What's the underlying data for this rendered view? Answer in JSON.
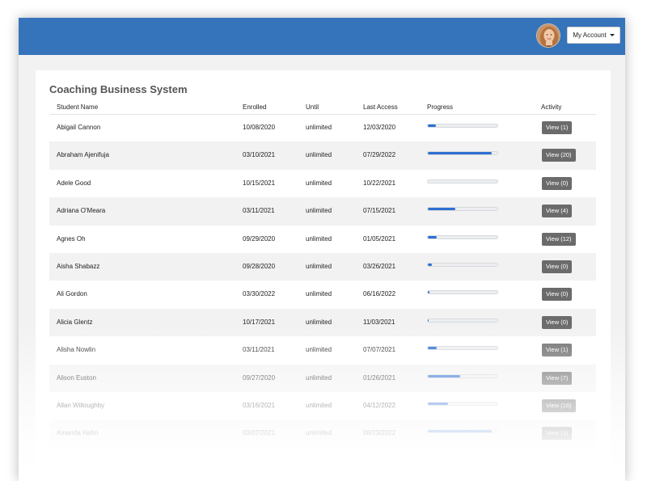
{
  "header": {
    "account_label": "My Account",
    "avatar_icon": "user-avatar"
  },
  "page": {
    "title": "Coaching Business System"
  },
  "table": {
    "columns": [
      "Student Name",
      "Enrolled",
      "Until",
      "Last Access",
      "Progress",
      "Activity"
    ],
    "rows": [
      {
        "name": "Abigail Cannon",
        "enrolled": "10/08/2020",
        "until": "unlimited",
        "last": "12/03/2020",
        "progress": 0.12,
        "activity": "View (1)"
      },
      {
        "name": "Abraham Ajenifuja",
        "enrolled": "03/10/2021",
        "until": "unlimited",
        "last": "07/29/2022",
        "progress": 0.92,
        "activity": "View (20)"
      },
      {
        "name": "Adele Good",
        "enrolled": "10/15/2021",
        "until": "unlimited",
        "last": "10/22/2021",
        "progress": 0.0,
        "activity": "View (0)"
      },
      {
        "name": "Adriana O'Meara",
        "enrolled": "03/11/2021",
        "until": "unlimited",
        "last": "07/15/2021",
        "progress": 0.4,
        "activity": "View (4)"
      },
      {
        "name": "Agnes Oh",
        "enrolled": "09/29/2020",
        "until": "unlimited",
        "last": "01/05/2021",
        "progress": 0.13,
        "activity": "View (12)"
      },
      {
        "name": "Aisha Shabazz",
        "enrolled": "09/28/2020",
        "until": "unlimited",
        "last": "03/26/2021",
        "progress": 0.06,
        "activity": "View (0)"
      },
      {
        "name": "Ali Gordon",
        "enrolled": "03/30/2022",
        "until": "unlimited",
        "last": "06/16/2022",
        "progress": 0.02,
        "activity": "View (0)"
      },
      {
        "name": "Alicia Glentz",
        "enrolled": "10/17/2021",
        "until": "unlimited",
        "last": "11/03/2021",
        "progress": 0.01,
        "activity": "View (0)"
      },
      {
        "name": "Alisha Nowlin",
        "enrolled": "03/11/2021",
        "until": "unlimited",
        "last": "07/07/2021",
        "progress": 0.13,
        "activity": "View (1)"
      },
      {
        "name": "Alison Euston",
        "enrolled": "09/27/2020",
        "until": "unlimited",
        "last": "01/26/2021",
        "progress": 0.47,
        "activity": "View (7)"
      },
      {
        "name": "Allan Willoughby",
        "enrolled": "03/16/2021",
        "until": "unlimited",
        "last": "04/12/2022",
        "progress": 0.29,
        "activity": "View (16)"
      },
      {
        "name": "Amanda Hahn",
        "enrolled": "03/07/2021",
        "until": "unlimited",
        "last": "08/23/2022",
        "progress": 0.92,
        "activity": "View (1)"
      }
    ]
  },
  "colors": {
    "topbar": "#3574ba",
    "progress_fill": "#2d6fd2",
    "button": "#6b6b6b"
  }
}
